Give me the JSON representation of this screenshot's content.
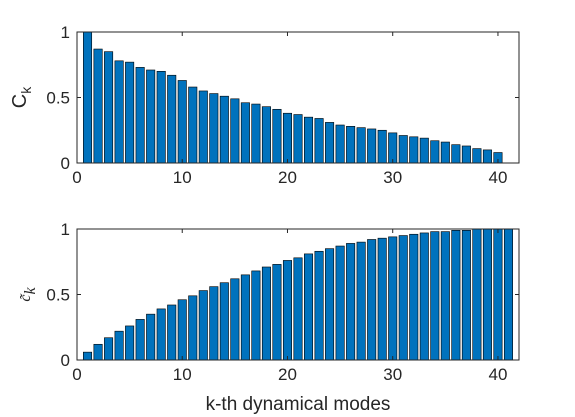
{
  "chart_data": [
    {
      "type": "bar",
      "ylabel": "C",
      "ylabel_subscript": "k",
      "xlabel": "",
      "xlim": [
        0,
        42
      ],
      "ylim": [
        0,
        1
      ],
      "xticks": [
        0,
        10,
        20,
        30,
        40
      ],
      "xtick_labels": [
        "0",
        "10",
        "20",
        "30",
        "40"
      ],
      "yticks": [
        0,
        0.5,
        1
      ],
      "ytick_labels": [
        "0",
        "0.5",
        "1"
      ],
      "x": [
        1,
        2,
        3,
        4,
        5,
        6,
        7,
        8,
        9,
        10,
        11,
        12,
        13,
        14,
        15,
        16,
        17,
        18,
        19,
        20,
        21,
        22,
        23,
        24,
        25,
        26,
        27,
        28,
        29,
        30,
        31,
        32,
        33,
        34,
        35,
        36,
        37,
        38,
        39,
        40
      ],
      "values": [
        1.0,
        0.87,
        0.85,
        0.78,
        0.77,
        0.73,
        0.71,
        0.7,
        0.67,
        0.63,
        0.58,
        0.55,
        0.53,
        0.51,
        0.49,
        0.46,
        0.45,
        0.43,
        0.41,
        0.38,
        0.37,
        0.35,
        0.34,
        0.31,
        0.29,
        0.28,
        0.27,
        0.26,
        0.25,
        0.23,
        0.21,
        0.2,
        0.19,
        0.17,
        0.16,
        0.14,
        0.13,
        0.11,
        0.1,
        0.08
      ],
      "bar_color": "#0072BD",
      "grid": false
    },
    {
      "type": "bar",
      "ylabel": "c̃",
      "ylabel_subscript": "k",
      "xlabel": "k-th dynamical modes",
      "xlim": [
        0,
        42
      ],
      "ylim": [
        0,
        1
      ],
      "xticks": [
        0,
        10,
        20,
        30,
        40
      ],
      "xtick_labels": [
        "0",
        "10",
        "20",
        "30",
        "40"
      ],
      "yticks": [
        0,
        0.5,
        1
      ],
      "ytick_labels": [
        "0",
        "0.5",
        "1"
      ],
      "x": [
        1,
        2,
        3,
        4,
        5,
        6,
        7,
        8,
        9,
        10,
        11,
        12,
        13,
        14,
        15,
        16,
        17,
        18,
        19,
        20,
        21,
        22,
        23,
        24,
        25,
        26,
        27,
        28,
        29,
        30,
        31,
        32,
        33,
        34,
        35,
        36,
        37,
        38,
        39,
        40,
        41
      ],
      "values": [
        0.06,
        0.12,
        0.17,
        0.22,
        0.26,
        0.31,
        0.35,
        0.39,
        0.42,
        0.46,
        0.49,
        0.53,
        0.56,
        0.59,
        0.62,
        0.65,
        0.68,
        0.71,
        0.73,
        0.76,
        0.78,
        0.81,
        0.83,
        0.85,
        0.87,
        0.89,
        0.9,
        0.92,
        0.93,
        0.94,
        0.95,
        0.96,
        0.97,
        0.98,
        0.98,
        0.99,
        0.99,
        1.0,
        1.0,
        1.0,
        1.0
      ],
      "bar_color": "#0072BD",
      "grid": false
    }
  ]
}
